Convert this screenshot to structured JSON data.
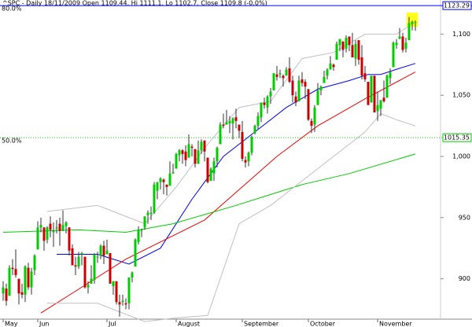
{
  "chart_data": {
    "type": "candlestick",
    "title": "^SPC - Daily 18/11/2009 Open 1109.44, Hi 1111.1, Lo 1102.7, Close 1109.8 (-0.0%)",
    "ylim": [
      867,
      1124
    ],
    "yticks": [
      {
        "value": 900,
        "label": "900"
      },
      {
        "value": 950,
        "label": "950"
      },
      {
        "value": 1000,
        "label": "1,000"
      },
      {
        "value": 1050,
        "label": "1,050"
      },
      {
        "value": 1100,
        "label": "1,100"
      }
    ],
    "xlim": [
      -1,
      134
    ],
    "xticks": [
      {
        "value": 0,
        "label": "May"
      },
      {
        "value": 11,
        "label": "Jun"
      },
      {
        "value": 33,
        "label": "Jul"
      },
      {
        "value": 55,
        "label": "August"
      },
      {
        "value": 76,
        "label": "September"
      },
      {
        "value": 97,
        "label": "October"
      },
      {
        "value": 119,
        "label": "November"
      }
    ],
    "up_color": "#00cc00",
    "down_color": "#cc0000",
    "candles": [
      [
        888,
        898,
        882,
        893
      ],
      [
        892,
        896,
        878,
        882
      ],
      [
        886,
        911,
        886,
        909
      ],
      [
        909,
        916,
        903,
        908
      ],
      [
        908,
        924,
        901,
        903
      ],
      [
        900,
        900,
        879,
        888
      ],
      [
        889,
        896,
        884,
        887
      ],
      [
        887,
        911,
        881,
        910
      ],
      [
        909,
        913,
        891,
        893
      ],
      [
        893,
        909,
        887,
        906
      ],
      [
        907,
        920,
        903,
        919
      ],
      [
        924,
        947,
        924,
        942
      ],
      [
        942,
        950,
        938,
        944
      ],
      [
        942,
        942,
        923,
        931
      ],
      [
        932,
        943,
        929,
        942
      ],
      [
        945,
        951,
        934,
        940
      ],
      [
        938,
        946,
        926,
        939
      ],
      [
        941,
        948,
        937,
        942
      ],
      [
        945,
        950,
        927,
        939
      ],
      [
        940,
        956,
        939,
        944
      ],
      [
        943,
        947,
        937,
        946
      ],
      [
        942,
        942,
        919,
        923
      ],
      [
        925,
        928,
        911,
        911
      ],
      [
        911,
        918,
        903,
        910
      ],
      [
        910,
        922,
        908,
        918
      ],
      [
        920,
        922,
        911,
        921
      ],
      [
        918,
        918,
        892,
        893
      ],
      [
        893,
        898,
        888,
        895
      ],
      [
        896,
        911,
        896,
        900
      ],
      [
        899,
        921,
        896,
        920
      ],
      [
        918,
        922,
        913,
        918
      ],
      [
        919,
        928,
        916,
        927
      ],
      [
        927,
        931,
        912,
        919
      ],
      [
        920,
        932,
        920,
        923
      ],
      [
        921,
        921,
        896,
        896
      ],
      [
        894,
        898,
        887,
        898
      ],
      [
        898,
        898,
        879,
        881
      ],
      [
        881,
        887,
        869,
        879
      ],
      [
        881,
        887,
        878,
        882
      ],
      [
        880,
        884,
        875,
        879
      ],
      [
        880,
        901,
        875,
        901
      ],
      [
        901,
        906,
        897,
        905
      ],
      [
        910,
        933,
        910,
        932
      ],
      [
        930,
        943,
        928,
        940
      ],
      [
        940,
        941,
        934,
        940
      ],
      [
        942,
        951,
        940,
        951
      ],
      [
        952,
        956,
        945,
        954
      ],
      [
        953,
        959,
        948,
        954
      ],
      [
        954,
        979,
        953,
        977
      ],
      [
        972,
        979,
        965,
        979
      ],
      [
        979,
        983,
        973,
        982
      ],
      [
        981,
        982,
        969,
        979
      ],
      [
        977,
        977,
        968,
        975
      ],
      [
        976,
        996,
        976,
        986
      ],
      [
        986,
        994,
        986,
        987
      ],
      [
        990,
        1003,
        990,
        1002
      ],
      [
        1001,
        1006,
        996,
        1005
      ],
      [
        1005,
        1006,
        994,
        1002
      ],
      [
        1004,
        1009,
        992,
        997
      ],
      [
        999,
        1018,
        999,
        1010
      ],
      [
        1008,
        1010,
        1000,
        1007
      ],
      [
        1006,
        1006,
        991,
        994
      ],
      [
        994,
        1013,
        994,
        1005
      ],
      [
        1005,
        1014,
        1002,
        1012
      ],
      [
        1013,
        1013,
        996,
        1004
      ],
      [
        999,
        999,
        978,
        979
      ],
      [
        980,
        991,
        980,
        990
      ],
      [
        986,
        999,
        980,
        996
      ],
      [
        996,
        1008,
        991,
        1007
      ],
      [
        1010,
        1028,
        1010,
        1026
      ],
      [
        1026,
        1035,
        1023,
        1025
      ],
      [
        1026,
        1038,
        1026,
        1028
      ],
      [
        1027,
        1033,
        1019,
        1029
      ],
      [
        1027,
        1032,
        1014,
        1031
      ],
      [
        1032,
        1039,
        1023,
        1029
      ],
      [
        1026,
        1026,
        1015,
        1021
      ],
      [
        1020,
        1029,
        996,
        998
      ],
      [
        997,
        1000,
        991,
        995
      ],
      [
        996,
        1004,
        992,
        1003
      ],
      [
        1003,
        1017,
        1001,
        1016
      ],
      [
        1019,
        1026,
        1018,
        1025
      ],
      [
        1025,
        1036,
        1022,
        1033
      ],
      [
        1032,
        1044,
        1028,
        1044
      ],
      [
        1044,
        1048,
        1039,
        1042
      ],
      [
        1040,
        1050,
        1035,
        1049
      ],
      [
        1049,
        1056,
        1043,
        1053
      ],
      [
        1054,
        1068,
        1054,
        1068
      ],
      [
        1067,
        1074,
        1062,
        1065
      ],
      [
        1067,
        1071,
        1064,
        1068
      ],
      [
        1066,
        1067,
        1057,
        1064
      ],
      [
        1066,
        1073,
        1066,
        1071
      ],
      [
        1072,
        1081,
        1060,
        1061
      ],
      [
        1062,
        1066,
        1044,
        1050
      ],
      [
        1049,
        1053,
        1041,
        1044
      ],
      [
        1045,
        1066,
        1045,
        1062
      ],
      [
        1063,
        1069,
        1057,
        1060
      ],
      [
        1061,
        1063,
        1047,
        1057
      ],
      [
        1055,
        1055,
        1029,
        1030
      ],
      [
        1029,
        1031,
        1019,
        1025
      ],
      [
        1026,
        1042,
        1020,
        1040
      ],
      [
        1042,
        1060,
        1042,
        1054
      ],
      [
        1054,
        1058,
        1050,
        1057
      ],
      [
        1060,
        1070,
        1060,
        1065
      ],
      [
        1066,
        1072,
        1063,
        1071
      ],
      [
        1071,
        1082,
        1071,
        1076
      ],
      [
        1075,
        1076,
        1070,
        1073
      ],
      [
        1079,
        1094,
        1079,
        1092
      ],
      [
        1091,
        1096,
        1086,
        1096
      ],
      [
        1094,
        1094,
        1081,
        1087
      ],
      [
        1088,
        1099,
        1085,
        1097
      ],
      [
        1098,
        1098,
        1086,
        1091
      ],
      [
        1091,
        1101,
        1081,
        1081
      ],
      [
        1080,
        1095,
        1074,
        1092
      ],
      [
        1095,
        1095,
        1075,
        1079
      ],
      [
        1081,
        1091,
        1063,
        1066
      ],
      [
        1068,
        1074,
        1061,
        1063
      ],
      [
        1061,
        1061,
        1042,
        1042
      ],
      [
        1044,
        1066,
        1044,
        1066
      ],
      [
        1066,
        1066,
        1036,
        1036
      ],
      [
        1037,
        1053,
        1029,
        1042
      ],
      [
        1039,
        1046,
        1033,
        1046
      ],
      [
        1048,
        1062,
        1044,
        1045
      ],
      [
        1048,
        1067,
        1048,
        1066
      ],
      [
        1064,
        1072,
        1059,
        1069
      ],
      [
        1073,
        1094,
        1073,
        1093
      ],
      [
        1091,
        1096,
        1088,
        1093
      ],
      [
        1096,
        1105,
        1096,
        1098
      ],
      [
        1098,
        1101,
        1085,
        1087
      ],
      [
        1088,
        1097,
        1085,
        1093
      ],
      [
        1095,
        1114,
        1095,
        1109
      ],
      [
        1108,
        1111,
        1103,
        1110
      ],
      [
        1109.44,
        1111.1,
        1102.7,
        1109.8
      ]
    ],
    "lines": [
      {
        "color": "#0000ee",
        "x": [
          17,
          30,
          40,
          50,
          60,
          70,
          80,
          90,
          100,
          110,
          116,
          120,
          126,
          131
        ],
        "values": [
          920,
          920,
          912,
          925,
          965,
          1000,
          1020,
          1040,
          1055,
          1062,
          1067,
          1067,
          1072,
          1076
        ]
      },
      {
        "color": "#ee0000",
        "x": [
          12,
          20,
          39,
          64,
          87,
          100,
          115,
          131
        ],
        "values": [
          872,
          885,
          916,
          948,
          1000,
          1025,
          1047,
          1069
        ]
      },
      {
        "color": "#00cc00",
        "x": [
          0,
          24,
          39,
          54,
          74,
          95,
          110,
          131
        ],
        "values": [
          938,
          940,
          938,
          945,
          960,
          977,
          986,
          1002
        ]
      },
      {
        "color": "#c0c0c0",
        "x": [
          14,
          30,
          45,
          55,
          65,
          75,
          85,
          95,
          105,
          115,
          125,
          131
        ],
        "values": [
          955,
          960,
          945,
          975,
          1010,
          1040,
          1045,
          1080,
          1085,
          1100,
          1100,
          1110
        ]
      },
      {
        "color": "#c0c0c0",
        "x": [
          14,
          30,
          45,
          55,
          65,
          75,
          85,
          95,
          105,
          115,
          120,
          125,
          131
        ],
        "values": [
          880,
          880,
          865,
          868,
          870,
          945,
          960,
          980,
          1000,
          1020,
          1035,
          1030,
          1025
        ]
      }
    ],
    "levels": [
      {
        "label": "80.0%",
        "value": 1123.29,
        "color": "#0000ee",
        "dash": false
      },
      {
        "label": "50.0%",
        "value": 1015.35,
        "color": "#00cc00",
        "dash": true
      }
    ]
  }
}
